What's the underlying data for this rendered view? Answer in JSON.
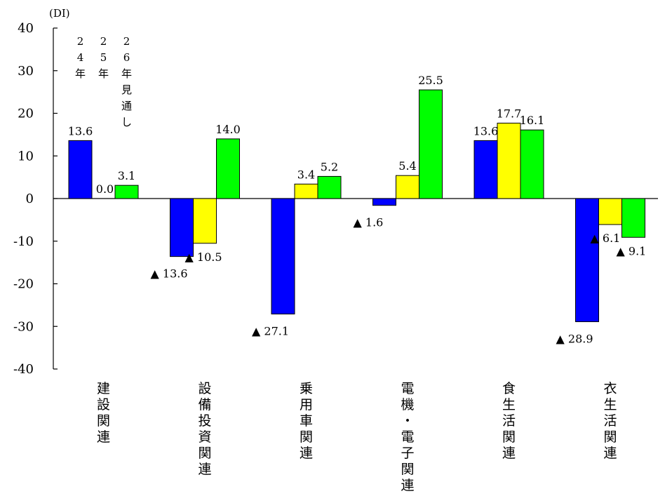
{
  "chart_data": {
    "type": "bar",
    "unit_label": "(DI)",
    "title": "",
    "xlabel": "",
    "ylabel": "",
    "ylim": [
      -40,
      40
    ],
    "yticks": [
      40,
      30,
      20,
      10,
      0,
      -10,
      -20,
      -30,
      -40
    ],
    "grid": false,
    "categories": [
      "建設関連",
      "設備投資関連",
      "乗用車関連",
      "電機・電子関連",
      "食生活関連",
      "衣生活関連"
    ],
    "series": [
      {
        "name": "24年",
        "color": "#0000ff",
        "values": [
          13.6,
          -13.6,
          -27.1,
          -1.6,
          13.6,
          -28.9
        ],
        "labels": [
          "13.6",
          "▲ 13.6",
          "▲ 27.1",
          "▲ 1.6",
          "13.6",
          "▲ 28.9"
        ]
      },
      {
        "name": "25年",
        "color": "#ffff00",
        "values": [
          0.0,
          -10.5,
          3.4,
          5.4,
          17.7,
          -6.1
        ],
        "labels": [
          "0.0",
          "▲ 10.5",
          "3.4",
          "5.4",
          "17.7",
          "▲ 6.1"
        ]
      },
      {
        "name": "26年見通し",
        "color": "#00ff00",
        "values": [
          3.1,
          14.0,
          5.2,
          25.5,
          16.1,
          -9.1
        ],
        "labels": [
          "3.1",
          "14.0",
          "5.2",
          "25.5",
          "16.1",
          "▲ 9.1"
        ]
      }
    ],
    "legend": {
      "placement": "top-left, inside plot above first category",
      "entries": [
        {
          "text": "24年"
        },
        {
          "text": "25年"
        },
        {
          "text": "26年見通し"
        }
      ]
    }
  }
}
